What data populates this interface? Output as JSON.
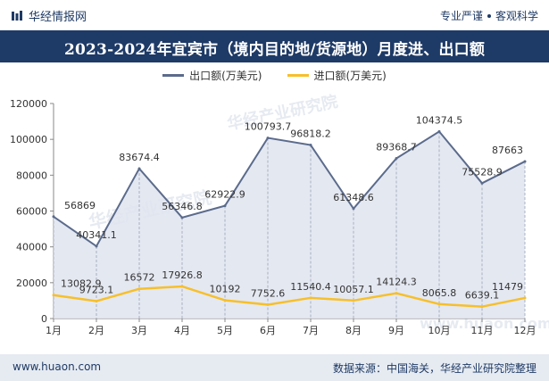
{
  "header": {
    "brand_name": "华经情报网",
    "tagline_left": "专业严谨",
    "tagline_right": "客观科学"
  },
  "watermarks": {
    "text_1": "华经产业研究院",
    "text_2": "华经产业研究院",
    "text_3": "www.huaon.com"
  },
  "footer": {
    "site": "www.huaon.com",
    "source": "数据来源：中国海关，华经产业研究院整理"
  },
  "colors": {
    "export_line": "#5b6b8c",
    "export_fill": "#dfe4ef",
    "import_line": "#f7bf2a",
    "title_bg": "#1e3a66"
  },
  "chart_data": {
    "type": "area",
    "title": "2023-2024年宜宾市（境内目的地/货源地）月度进、出口额",
    "categories": [
      "1月",
      "2月",
      "3月",
      "4月",
      "5月",
      "6月",
      "7月",
      "8月",
      "9月",
      "10月",
      "11月",
      "12月"
    ],
    "series": [
      {
        "name": "出口额(万美元)",
        "values": [
          56869,
          40341.1,
          83674.4,
          56346.8,
          62922.9,
          100793.7,
          96818.2,
          61348.6,
          89368.7,
          104374.5,
          75528.9,
          87663
        ],
        "labels": [
          "56869",
          "40341.1",
          "83674.4",
          "56346.8",
          "62922.9",
          "100793.7",
          "96818.2",
          "61348.6",
          "89368.7",
          "104374.5",
          "75528.9",
          "87663"
        ]
      },
      {
        "name": "进口额(万美元)",
        "values": [
          13082.9,
          9723.1,
          16572,
          17926.8,
          10192,
          7752.6,
          11540.4,
          10057.1,
          14124.3,
          8065.8,
          6639.1,
          11479
        ],
        "labels": [
          "13082.9",
          "9723.1",
          "16572",
          "17926.8",
          "10192",
          "7752.6",
          "11540.4",
          "10057.1",
          "14124.3",
          "8065.8",
          "6639.1",
          "11479"
        ]
      }
    ],
    "ylim": [
      0,
      120000
    ],
    "yticks": [
      0,
      20000,
      40000,
      60000,
      80000,
      100000,
      120000
    ],
    "ytick_labels": [
      "0",
      "20000",
      "40000",
      "60000",
      "80000",
      "100000",
      "120000"
    ],
    "grid": false,
    "legend": "top-center"
  }
}
